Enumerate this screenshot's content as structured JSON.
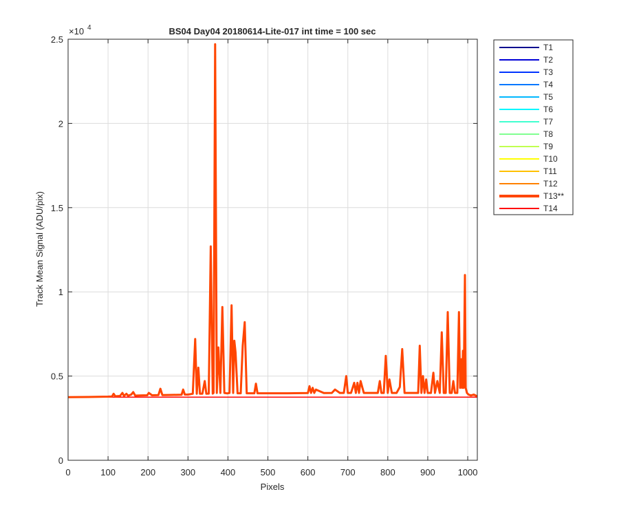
{
  "chart_data": {
    "type": "line",
    "title": "BS04 Day04 20180614-Lite-017 int time = 100 sec",
    "xlabel": "Pixels",
    "ylabel": "Track Mean Signal (ADU/pix)",
    "xlim": [
      0,
      1024
    ],
    "ylim": [
      0,
      25000
    ],
    "x_ticks": [
      0,
      100,
      200,
      300,
      400,
      500,
      600,
      700,
      800,
      900,
      1000
    ],
    "x_tick_labels": [
      "0",
      "100",
      "200",
      "300",
      "400",
      "500",
      "600",
      "700",
      "800",
      "900",
      "1000"
    ],
    "y_ticks": [
      0,
      5000,
      10000,
      15000,
      20000,
      25000
    ],
    "y_tick_labels": [
      "0",
      "0.5",
      "1",
      "1.5",
      "2",
      "2.5"
    ],
    "y_exponent_base": "×10",
    "y_exponent_power": "4",
    "grid": true,
    "legend_position": "outside-top-right",
    "highlighted_series": "T13**",
    "series": [
      {
        "name": "T1",
        "color": "#00008f"
      },
      {
        "name": "T2",
        "color": "#0000d6"
      },
      {
        "name": "T3",
        "color": "#0033ff"
      },
      {
        "name": "T4",
        "color": "#0077ff"
      },
      {
        "name": "T5",
        "color": "#00b7ff"
      },
      {
        "name": "T6",
        "color": "#00f7ff"
      },
      {
        "name": "T7",
        "color": "#40ffd0"
      },
      {
        "name": "T8",
        "color": "#80ff90"
      },
      {
        "name": "T9",
        "color": "#c0ff50"
      },
      {
        "name": "T10",
        "color": "#ffff00"
      },
      {
        "name": "T11",
        "color": "#ffc000"
      },
      {
        "name": "T12",
        "color": "#ff8000"
      },
      {
        "name": "T13**",
        "color": "#ff4500",
        "x": [
          0,
          50,
          100,
          110,
          114,
          118,
          130,
          136,
          140,
          146,
          150,
          158,
          163,
          168,
          180,
          198,
          202,
          210,
          226,
          231,
          236,
          260,
          284,
          288,
          292,
          300,
          312,
          318,
          322,
          326,
          330,
          336,
          342,
          346,
          352,
          357,
          362,
          364,
          368,
          372,
          376,
          381,
          386,
          391,
          398,
          404,
          409,
          413,
          416,
          419,
          424,
          432,
          437,
          442,
          447,
          455,
          466,
          470,
          474,
          490,
          550,
          600,
          604,
          608,
          612,
          616,
          620,
          640,
          660,
          668,
          680,
          690,
          696,
          700,
          708,
          716,
          720,
          724,
          728,
          732,
          740,
          760,
          775,
          780,
          784,
          790,
          795,
          800,
          804,
          810,
          822,
          830,
          836,
          842,
          850,
          870,
          876,
          880,
          884,
          888,
          892,
          896,
          900,
          908,
          914,
          918,
          924,
          930,
          935,
          940,
          945,
          950,
          955,
          960,
          964,
          968,
          974,
          978,
          981,
          984,
          986,
          988,
          990,
          993,
          995,
          998,
          1002,
          1008,
          1015,
          1024
        ],
        "y": [
          3750,
          3760,
          3780,
          3790,
          3950,
          3800,
          3820,
          4000,
          3820,
          3950,
          3830,
          3900,
          4050,
          3840,
          3850,
          3860,
          4000,
          3860,
          3870,
          4250,
          3870,
          3880,
          3890,
          4200,
          3900,
          3900,
          3950,
          7200,
          3950,
          5500,
          3950,
          3950,
          4700,
          3950,
          3960,
          12700,
          3960,
          4000,
          24700,
          4000,
          6700,
          4000,
          9100,
          4000,
          3970,
          4000,
          9200,
          4000,
          7100,
          6400,
          3980,
          3980,
          6800,
          8200,
          3980,
          3980,
          3980,
          4550,
          3980,
          3980,
          3980,
          3990,
          4400,
          4000,
          4300,
          4000,
          4200,
          3990,
          4000,
          4200,
          4000,
          4000,
          5000,
          4000,
          4000,
          4600,
          4000,
          4600,
          4000,
          4700,
          4000,
          4000,
          4000,
          4700,
          4000,
          4000,
          6200,
          4000,
          4800,
          4000,
          4000,
          4350,
          6600,
          4000,
          4000,
          4000,
          4000,
          6800,
          4000,
          5000,
          4000,
          4800,
          4000,
          4000,
          5200,
          4000,
          4700,
          4000,
          7600,
          4000,
          4000,
          8800,
          4000,
          4000,
          4700,
          4000,
          4000,
          8800,
          4300,
          6000,
          4300,
          6500,
          4300,
          11000,
          4300,
          4000,
          3900,
          3850,
          3900,
          3800
        ]
      },
      {
        "name": "T14",
        "color": "#ff0000",
        "x": [
          0,
          1024
        ],
        "y": [
          3750,
          3750
        ]
      }
    ]
  }
}
